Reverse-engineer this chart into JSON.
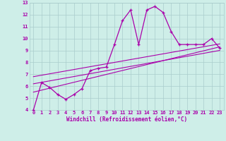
{
  "xlabel": "Windchill (Refroidissement éolien,°C)",
  "xlim": [
    -0.5,
    23.5
  ],
  "ylim": [
    4,
    13
  ],
  "xticks": [
    0,
    1,
    2,
    3,
    4,
    5,
    6,
    7,
    8,
    9,
    10,
    11,
    12,
    13,
    14,
    15,
    16,
    17,
    18,
    19,
    20,
    21,
    22,
    23
  ],
  "yticks": [
    4,
    5,
    6,
    7,
    8,
    9,
    10,
    11,
    12,
    13
  ],
  "background_color": "#ceeee8",
  "grid_color": "#aacccc",
  "line_color": "#aa00aa",
  "curve_x": [
    0,
    1,
    2,
    3,
    4,
    5,
    6,
    7,
    8,
    9,
    10,
    11,
    12,
    13,
    14,
    15,
    16,
    17,
    18,
    19,
    20,
    21,
    22,
    23
  ],
  "curve_y": [
    4.0,
    6.3,
    5.9,
    5.3,
    4.9,
    5.3,
    5.8,
    7.3,
    7.5,
    7.6,
    9.5,
    11.5,
    12.4,
    9.5,
    12.4,
    12.7,
    12.2,
    10.6,
    9.5,
    9.5,
    9.5,
    9.5,
    10.0,
    9.2
  ],
  "line1_x": [
    0,
    23
  ],
  "line1_y": [
    5.5,
    9.3
  ],
  "line2_x": [
    0,
    23
  ],
  "line2_y": [
    6.2,
    9.0
  ],
  "line3_x": [
    0,
    23
  ],
  "line3_y": [
    6.8,
    9.55
  ]
}
